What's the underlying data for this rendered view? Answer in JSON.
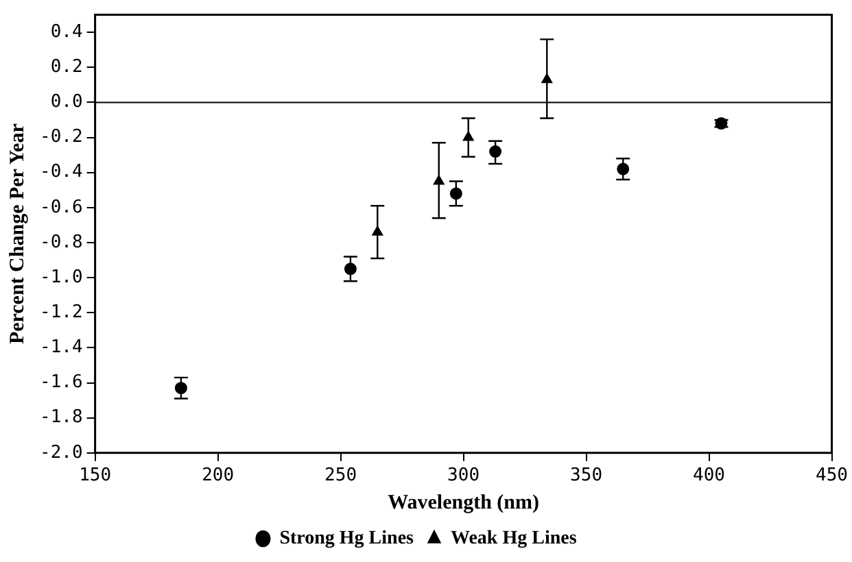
{
  "chart_data": {
    "type": "scatter",
    "xlabel": "Wavelength (nm)",
    "ylabel": "Percent Change Per Year",
    "xlim": [
      150,
      450
    ],
    "xticks": [
      150,
      200,
      250,
      300,
      350,
      400,
      450
    ],
    "ylim": [
      -2.0,
      0.5
    ],
    "yticks": [
      {
        "value": -2,
        "label": "-2.0"
      },
      {
        "value": -1.8,
        "label": "-1.8"
      },
      {
        "value": -1.6,
        "label": "-1.6"
      },
      {
        "value": -1.4,
        "label": "-1.4"
      },
      {
        "value": -1.2,
        "label": "-1.2"
      },
      {
        "value": -1,
        "label": "-1.0"
      },
      {
        "value": -0.8,
        "label": "-0.8"
      },
      {
        "value": -0.6,
        "label": "-0.6"
      },
      {
        "value": -0.4,
        "label": "-0.4"
      },
      {
        "value": -0.2,
        "label": "-0.2"
      },
      {
        "value": 0,
        "label": "0.0"
      },
      {
        "value": 0.2,
        "label": "0.2"
      },
      {
        "value": 0.4,
        "label": "0.4"
      }
    ],
    "ref_lines": [
      {
        "axis": "y",
        "value": 0,
        "color": "#000000"
      }
    ],
    "legend": "bottom",
    "grid": false,
    "series": [
      {
        "name": "Strong Hg Lines",
        "color": "#000000",
        "marker": "circle",
        "x": [
          185,
          254,
          297,
          313,
          365,
          405
        ],
        "values": [
          -1.63,
          -0.95,
          -0.52,
          -0.28,
          -0.38,
          -0.12
        ],
        "errors": [
          [
            -1.69,
            -1.57
          ],
          [
            -1.02,
            -0.88
          ],
          [
            -0.59,
            -0.45
          ],
          [
            -0.35,
            -0.22
          ],
          [
            -0.44,
            -0.32
          ],
          [
            -0.14,
            -0.1
          ]
        ]
      },
      {
        "name": "Weak Hg Lines",
        "color": "#000000",
        "marker": "triangle",
        "x": [
          265,
          290,
          302,
          334
        ],
        "values": [
          -0.74,
          -0.45,
          -0.2,
          0.13
        ],
        "errors": [
          [
            -0.89,
            -0.59
          ],
          [
            -0.66,
            -0.23
          ],
          [
            -0.31,
            -0.09
          ],
          [
            -0.09,
            0.36
          ]
        ]
      }
    ]
  }
}
